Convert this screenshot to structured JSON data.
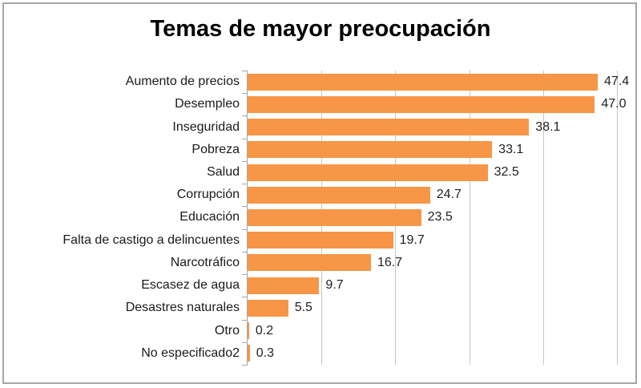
{
  "chart_data": {
    "type": "bar",
    "orientation": "horizontal",
    "title": "Temas de mayor preocupación",
    "categories": [
      "Aumento de precios",
      "Desempleo",
      "Inseguridad",
      "Pobreza",
      "Salud",
      "Corrupción",
      "Educación",
      "Falta de castigo a delincuentes",
      "Narcotráfico",
      "Escasez de agua",
      "Desastres naturales",
      "Otro",
      "No especificado2"
    ],
    "values": [
      47.4,
      47.0,
      38.1,
      33.1,
      32.5,
      24.7,
      23.5,
      19.7,
      16.7,
      9.7,
      5.5,
      0.2,
      0.3
    ],
    "value_labels": [
      "47.4",
      "47.0",
      "38.1",
      "33.1",
      "32.5",
      "24.7",
      "23.5",
      "19.7",
      "16.7",
      "9.7",
      "5.5",
      "0.2",
      "0.3"
    ],
    "xlabel": "",
    "ylabel": "",
    "xlim": [
      0,
      50
    ],
    "gridline_step": 10,
    "grid": true,
    "legend": "none",
    "data_labels": true,
    "colors": {
      "bar": "#F79646",
      "gridline": "#C6C6C6",
      "axis": "#A6A6A6",
      "title": "#000000",
      "label": "#1F1F1F",
      "border": "#A6A6A6",
      "background": "#FFFFFF"
    }
  }
}
